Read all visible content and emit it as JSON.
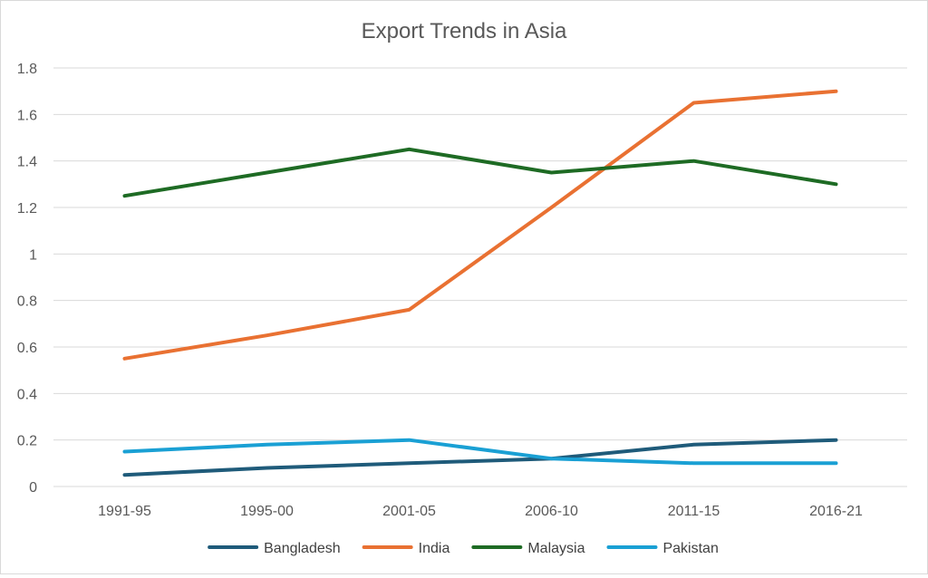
{
  "chart_data": {
    "type": "line",
    "title": "Export Trends in Asia",
    "xlabel": "",
    "ylabel": "",
    "categories": [
      "1991-95",
      "1995-00",
      "2001-05",
      "2006-10",
      "2011-15",
      "2016-21"
    ],
    "yticks": [
      "0",
      "0.2",
      "0.4",
      "0.6",
      "0.8",
      "1",
      "1.2",
      "1.4",
      "1.6",
      "1.8"
    ],
    "ylim": [
      0,
      1.8
    ],
    "grid": true,
    "legend_position": "bottom",
    "series": [
      {
        "name": "Bangladesh",
        "color": "#1f5b7a",
        "values": [
          0.05,
          0.08,
          0.1,
          0.12,
          0.18,
          0.2
        ]
      },
      {
        "name": "India",
        "color": "#e97132",
        "values": [
          0.55,
          0.65,
          0.76,
          1.2,
          1.65,
          1.7
        ]
      },
      {
        "name": "Malaysia",
        "color": "#1e6b24",
        "values": [
          1.25,
          1.35,
          1.45,
          1.35,
          1.4,
          1.3
        ]
      },
      {
        "name": "Pakistan",
        "color": "#1aa0d4",
        "values": [
          0.15,
          0.18,
          0.2,
          0.12,
          0.1,
          0.1
        ]
      }
    ]
  }
}
